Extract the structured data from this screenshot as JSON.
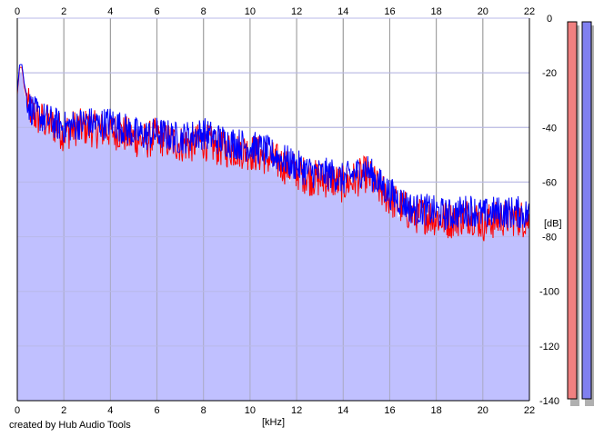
{
  "chart_data": {
    "type": "line",
    "xlabel": "[kHz]",
    "ylabel": "[dB]",
    "xlim": [
      0,
      22
    ],
    "ylim": [
      -140,
      0
    ],
    "x_ticks": [
      0,
      2,
      4,
      6,
      8,
      10,
      12,
      14,
      16,
      18,
      20,
      22
    ],
    "y_ticks": [
      0,
      -20,
      -40,
      -60,
      -80,
      -100,
      -120,
      -140
    ],
    "grid": true,
    "fill_color": "#c0c0ff",
    "series": [
      {
        "color": "#ff0000",
        "x": [
          0,
          0.1,
          0.2,
          0.3,
          0.5,
          0.8,
          1,
          1.5,
          2,
          2.5,
          3,
          3.5,
          4,
          4.5,
          5,
          5.5,
          6,
          6.5,
          7,
          7.5,
          8,
          8.5,
          9,
          9.5,
          10,
          10.5,
          11,
          11.5,
          12,
          12.5,
          13,
          13.5,
          14,
          14.5,
          15,
          15.5,
          16,
          16.5,
          17,
          17.5,
          18,
          18.5,
          19,
          19.5,
          20,
          20.5,
          21,
          21.5,
          22
        ],
        "y": [
          -28,
          -18,
          -18,
          -25,
          -33,
          -36,
          -37,
          -39,
          -42,
          -40,
          -40,
          -41,
          -41,
          -42,
          -44,
          -45,
          -43,
          -45,
          -46,
          -46,
          -45,
          -47,
          -48,
          -48,
          -49,
          -50,
          -52,
          -54,
          -56,
          -58,
          -59,
          -59,
          -61,
          -59,
          -57,
          -62,
          -66,
          -69,
          -72,
          -72,
          -73,
          -74,
          -73,
          -72,
          -75,
          -74,
          -73,
          -73,
          -74
        ]
      },
      {
        "color": "#0000ff",
        "x": [
          0,
          0.1,
          0.2,
          0.3,
          0.5,
          0.8,
          1,
          1.5,
          2,
          2.5,
          3,
          3.5,
          4,
          4.5,
          5,
          5.5,
          6,
          6.5,
          7,
          7.5,
          8,
          8.5,
          9,
          9.5,
          10,
          10.5,
          11,
          11.5,
          12,
          12.5,
          13,
          13.5,
          14,
          14.5,
          15,
          15.5,
          16,
          16.5,
          17,
          17.5,
          18,
          18.5,
          19,
          19.5,
          20,
          20.5,
          21,
          21.5,
          22
        ],
        "y": [
          -27,
          -17,
          -17,
          -24,
          -32,
          -35,
          -36,
          -38,
          -40,
          -39,
          -38,
          -39,
          -38,
          -40,
          -42,
          -43,
          -42,
          -43,
          -44,
          -43,
          -42,
          -44,
          -45,
          -46,
          -47,
          -48,
          -50,
          -52,
          -54,
          -56,
          -57,
          -57,
          -59,
          -57,
          -55,
          -60,
          -64,
          -67,
          -70,
          -70,
          -71,
          -72,
          -71,
          -70,
          -72,
          -71,
          -71,
          -71,
          -72
        ]
      }
    ],
    "level_meters": [
      {
        "color": "#f08080"
      },
      {
        "color": "#8080f0"
      }
    ]
  },
  "footer": {
    "credit": "created by Hub Audio Tools"
  }
}
